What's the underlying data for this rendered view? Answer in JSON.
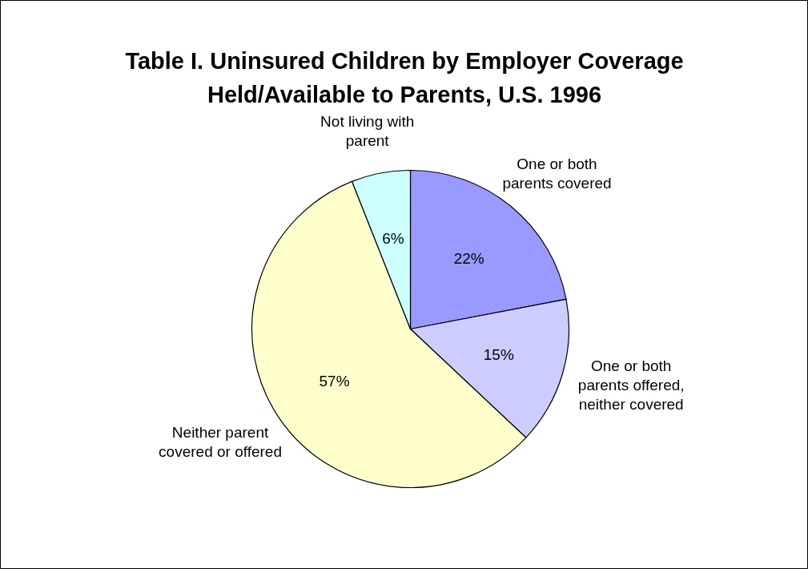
{
  "chart_data": {
    "type": "pie",
    "title": "Table I. Uninsured Children by Employer Coverage Held/Available to Parents, U.S. 1996",
    "categories": [
      "One or both parents covered",
      "One or both parents offered, neither covered",
      "Neither parent covered or offered",
      "Not living with parent"
    ],
    "values": [
      22,
      15,
      57,
      6
    ],
    "colors": [
      "#9999ff",
      "#ccccff",
      "#ffffcc",
      "#ccffff"
    ],
    "value_labels": [
      "22%",
      "15%",
      "57%",
      "6%"
    ]
  }
}
